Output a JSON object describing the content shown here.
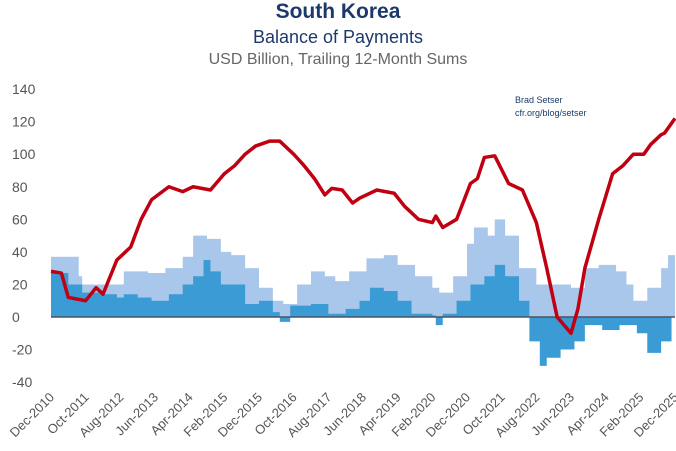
{
  "chart_data": {
    "type": "area",
    "title": "South Korea",
    "subtitle": "Balance of Payments",
    "ylabel": "USD Billion, Trailing 12-Month Sums",
    "attribution": [
      "Brad Setser",
      "cfr.org/blog/setser"
    ],
    "ylim": [
      -40,
      140
    ],
    "yticks": [
      "140",
      "120",
      "100",
      "80",
      "60",
      "40",
      "20",
      "0",
      "-20",
      "-40"
    ],
    "xlim": [
      "2010-12",
      "2025-12"
    ],
    "xticks": [
      "Dec-2010",
      "Oct-2011",
      "Aug-2012",
      "Jun-2013",
      "Apr-2014",
      "Feb-2015",
      "Dec-2015",
      "Oct-2016",
      "Aug-2017",
      "Jun-2018",
      "Apr-2019",
      "Feb-2020",
      "Dec-2020",
      "Oct-2021",
      "Aug-2022",
      "Jun-2023",
      "Apr-2024",
      "Feb-2025",
      "Dec-2025"
    ],
    "grid": false,
    "legend": "none",
    "colors": {
      "line": "#c00012",
      "area_light": "#a9c7ea",
      "area_dark": "#3b9bd5",
      "zero_line": "#4a5560"
    },
    "series": [
      {
        "type": "area",
        "color": "#a9c7ea",
        "points": [
          [
            "2010-12",
            37
          ],
          [
            "2011-08",
            25
          ],
          [
            "2011-09",
            20
          ],
          [
            "2012-02",
            20
          ],
          [
            "2012-09",
            28
          ],
          [
            "2013-04",
            27
          ],
          [
            "2013-09",
            30
          ],
          [
            "2014-02",
            37
          ],
          [
            "2014-05",
            50
          ],
          [
            "2014-09",
            48
          ],
          [
            "2015-01",
            40
          ],
          [
            "2015-04",
            38
          ],
          [
            "2015-08",
            30
          ],
          [
            "2015-12",
            18
          ],
          [
            "2016-04",
            10
          ],
          [
            "2016-07",
            8
          ],
          [
            "2016-11",
            20
          ],
          [
            "2017-03",
            28
          ],
          [
            "2017-07",
            25
          ],
          [
            "2017-10",
            22
          ],
          [
            "2018-02",
            28
          ],
          [
            "2018-07",
            36
          ],
          [
            "2018-12",
            38
          ],
          [
            "2019-04",
            32
          ],
          [
            "2019-09",
            25
          ],
          [
            "2020-02",
            18
          ],
          [
            "2020-04",
            15
          ],
          [
            "2020-08",
            25
          ],
          [
            "2020-12",
            45
          ],
          [
            "2021-02",
            55
          ],
          [
            "2021-06",
            50
          ],
          [
            "2021-08",
            60
          ],
          [
            "2021-11",
            50
          ],
          [
            "2022-03",
            30
          ],
          [
            "2022-08",
            20
          ],
          [
            "2023-01",
            20
          ],
          [
            "2023-06",
            18
          ],
          [
            "2023-10",
            30
          ],
          [
            "2024-02",
            32
          ],
          [
            "2024-07",
            28
          ],
          [
            "2024-10",
            20
          ],
          [
            "2024-12",
            10
          ],
          [
            "2025-04",
            18
          ],
          [
            "2025-08",
            30
          ],
          [
            "2025-10",
            38
          ],
          [
            "2025-12",
            45
          ]
        ]
      },
      {
        "type": "area",
        "color": "#3b9bd5",
        "points": [
          [
            "2010-12",
            27
          ],
          [
            "2011-05",
            20
          ],
          [
            "2011-09",
            15
          ],
          [
            "2012-02",
            14
          ],
          [
            "2012-07",
            12
          ],
          [
            "2012-09",
            14
          ],
          [
            "2013-01",
            12
          ],
          [
            "2013-05",
            10
          ],
          [
            "2013-10",
            14
          ],
          [
            "2014-02",
            20
          ],
          [
            "2014-05",
            25
          ],
          [
            "2014-08",
            35
          ],
          [
            "2014-10",
            28
          ],
          [
            "2015-01",
            20
          ],
          [
            "2015-04",
            20
          ],
          [
            "2015-08",
            8
          ],
          [
            "2015-12",
            10
          ],
          [
            "2016-04",
            3
          ],
          [
            "2016-06",
            -3
          ],
          [
            "2016-09",
            7
          ],
          [
            "2017-03",
            8
          ],
          [
            "2017-08",
            2
          ],
          [
            "2018-01",
            5
          ],
          [
            "2018-05",
            10
          ],
          [
            "2018-08",
            18
          ],
          [
            "2018-12",
            16
          ],
          [
            "2019-04",
            10
          ],
          [
            "2019-08",
            2
          ],
          [
            "2020-02",
            1
          ],
          [
            "2020-03",
            -5
          ],
          [
            "2020-05",
            2
          ],
          [
            "2020-09",
            10
          ],
          [
            "2021-01",
            20
          ],
          [
            "2021-05",
            25
          ],
          [
            "2021-08",
            32
          ],
          [
            "2021-11",
            25
          ],
          [
            "2022-03",
            10
          ],
          [
            "2022-06",
            -15
          ],
          [
            "2022-09",
            -30
          ],
          [
            "2022-11",
            -25
          ],
          [
            "2023-03",
            -20
          ],
          [
            "2023-07",
            -15
          ],
          [
            "2023-10",
            -5
          ],
          [
            "2024-03",
            -8
          ],
          [
            "2024-08",
            -5
          ],
          [
            "2025-01",
            -10
          ],
          [
            "2025-04",
            -22
          ],
          [
            "2025-08",
            -15
          ],
          [
            "2025-11",
            0
          ],
          [
            "2025-12",
            -5
          ]
        ]
      },
      {
        "type": "line",
        "color": "#c00012",
        "points": [
          [
            "2010-12",
            28
          ],
          [
            "2011-03",
            27
          ],
          [
            "2011-05",
            12
          ],
          [
            "2011-10",
            10
          ],
          [
            "2012-01",
            18
          ],
          [
            "2012-03",
            14
          ],
          [
            "2012-07",
            35
          ],
          [
            "2012-11",
            43
          ],
          [
            "2013-02",
            60
          ],
          [
            "2013-05",
            72
          ],
          [
            "2013-10",
            80
          ],
          [
            "2014-02",
            77
          ],
          [
            "2014-05",
            80
          ],
          [
            "2014-10",
            78
          ],
          [
            "2015-02",
            88
          ],
          [
            "2015-05",
            93
          ],
          [
            "2015-08",
            100
          ],
          [
            "2015-11",
            105
          ],
          [
            "2016-03",
            108
          ],
          [
            "2016-06",
            108
          ],
          [
            "2016-10",
            100
          ],
          [
            "2017-01",
            93
          ],
          [
            "2017-04",
            85
          ],
          [
            "2017-07",
            75
          ],
          [
            "2017-09",
            79
          ],
          [
            "2017-12",
            78
          ],
          [
            "2018-03",
            70
          ],
          [
            "2018-05",
            73
          ],
          [
            "2018-10",
            78
          ],
          [
            "2019-03",
            76
          ],
          [
            "2019-06",
            68
          ],
          [
            "2019-10",
            60
          ],
          [
            "2020-02",
            58
          ],
          [
            "2020-03",
            62
          ],
          [
            "2020-05",
            55
          ],
          [
            "2020-09",
            60
          ],
          [
            "2021-01",
            82
          ],
          [
            "2021-03",
            85
          ],
          [
            "2021-05",
            98
          ],
          [
            "2021-08",
            99
          ],
          [
            "2021-12",
            82
          ],
          [
            "2022-04",
            78
          ],
          [
            "2022-08",
            58
          ],
          [
            "2022-11",
            30
          ],
          [
            "2023-02",
            0
          ],
          [
            "2023-06",
            -10
          ],
          [
            "2023-08",
            5
          ],
          [
            "2023-10",
            30
          ],
          [
            "2024-02",
            60
          ],
          [
            "2024-06",
            88
          ],
          [
            "2024-09",
            93
          ],
          [
            "2024-12",
            100
          ],
          [
            "2025-03",
            100
          ],
          [
            "2025-05",
            106
          ],
          [
            "2025-08",
            112
          ],
          [
            "2025-09",
            113
          ],
          [
            "2025-12",
            122
          ]
        ]
      }
    ]
  }
}
